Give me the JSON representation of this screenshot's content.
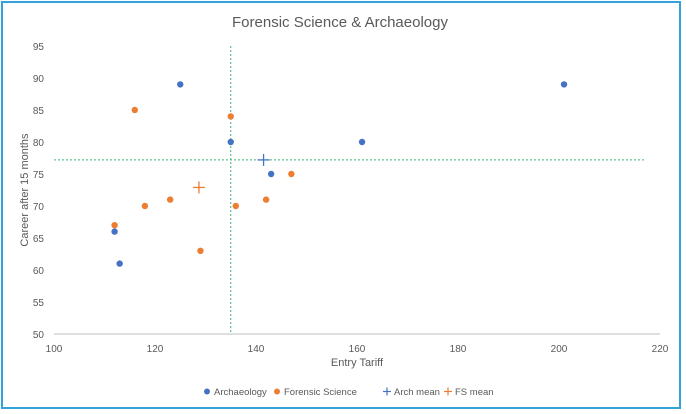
{
  "chart_data": {
    "type": "scatter",
    "title": "Forensic Science & Archaeology",
    "xlabel": "Entry Tariff",
    "ylabel": "Career after 15 months",
    "xlim": [
      100,
      220
    ],
    "ylim": [
      50,
      95
    ],
    "xticks": [
      100,
      120,
      140,
      160,
      180,
      200,
      220
    ],
    "yticks": [
      50,
      55,
      60,
      65,
      70,
      75,
      80,
      85,
      90,
      95
    ],
    "grid": false,
    "legend_position": "bottom",
    "series": [
      {
        "name": "Archaeology",
        "marker": "circle",
        "color": "#4472c4",
        "points": [
          [
            125,
            89
          ],
          [
            135,
            80
          ],
          [
            112,
            66
          ],
          [
            113,
            61
          ],
          [
            143,
            75
          ],
          [
            161,
            80
          ],
          [
            201,
            89
          ]
        ]
      },
      {
        "name": "Forensic Science",
        "marker": "circle",
        "color": "#ed7d31",
        "points": [
          [
            116,
            85
          ],
          [
            135,
            84
          ],
          [
            112,
            67
          ],
          [
            118,
            70
          ],
          [
            123,
            71
          ],
          [
            129,
            63
          ],
          [
            136,
            70
          ],
          [
            142,
            71
          ],
          [
            147,
            75
          ]
        ]
      },
      {
        "name": "Arch mean",
        "marker": "plus",
        "color": "#4472c4",
        "points": [
          [
            141.5,
            77.2
          ]
        ]
      },
      {
        "name": "FS mean",
        "marker": "plus",
        "color": "#ed7d31",
        "points": [
          [
            128.7,
            72.9
          ]
        ]
      }
    ],
    "reference_lines": [
      {
        "orientation": "vertical",
        "x": 135,
        "y_range": [
          50,
          95
        ],
        "color": "#3cb371",
        "style": "dashed"
      },
      {
        "orientation": "horizontal",
        "y": 77.2,
        "x_range": [
          100,
          217
        ],
        "color": "#3cb371",
        "style": "dashed"
      }
    ]
  }
}
